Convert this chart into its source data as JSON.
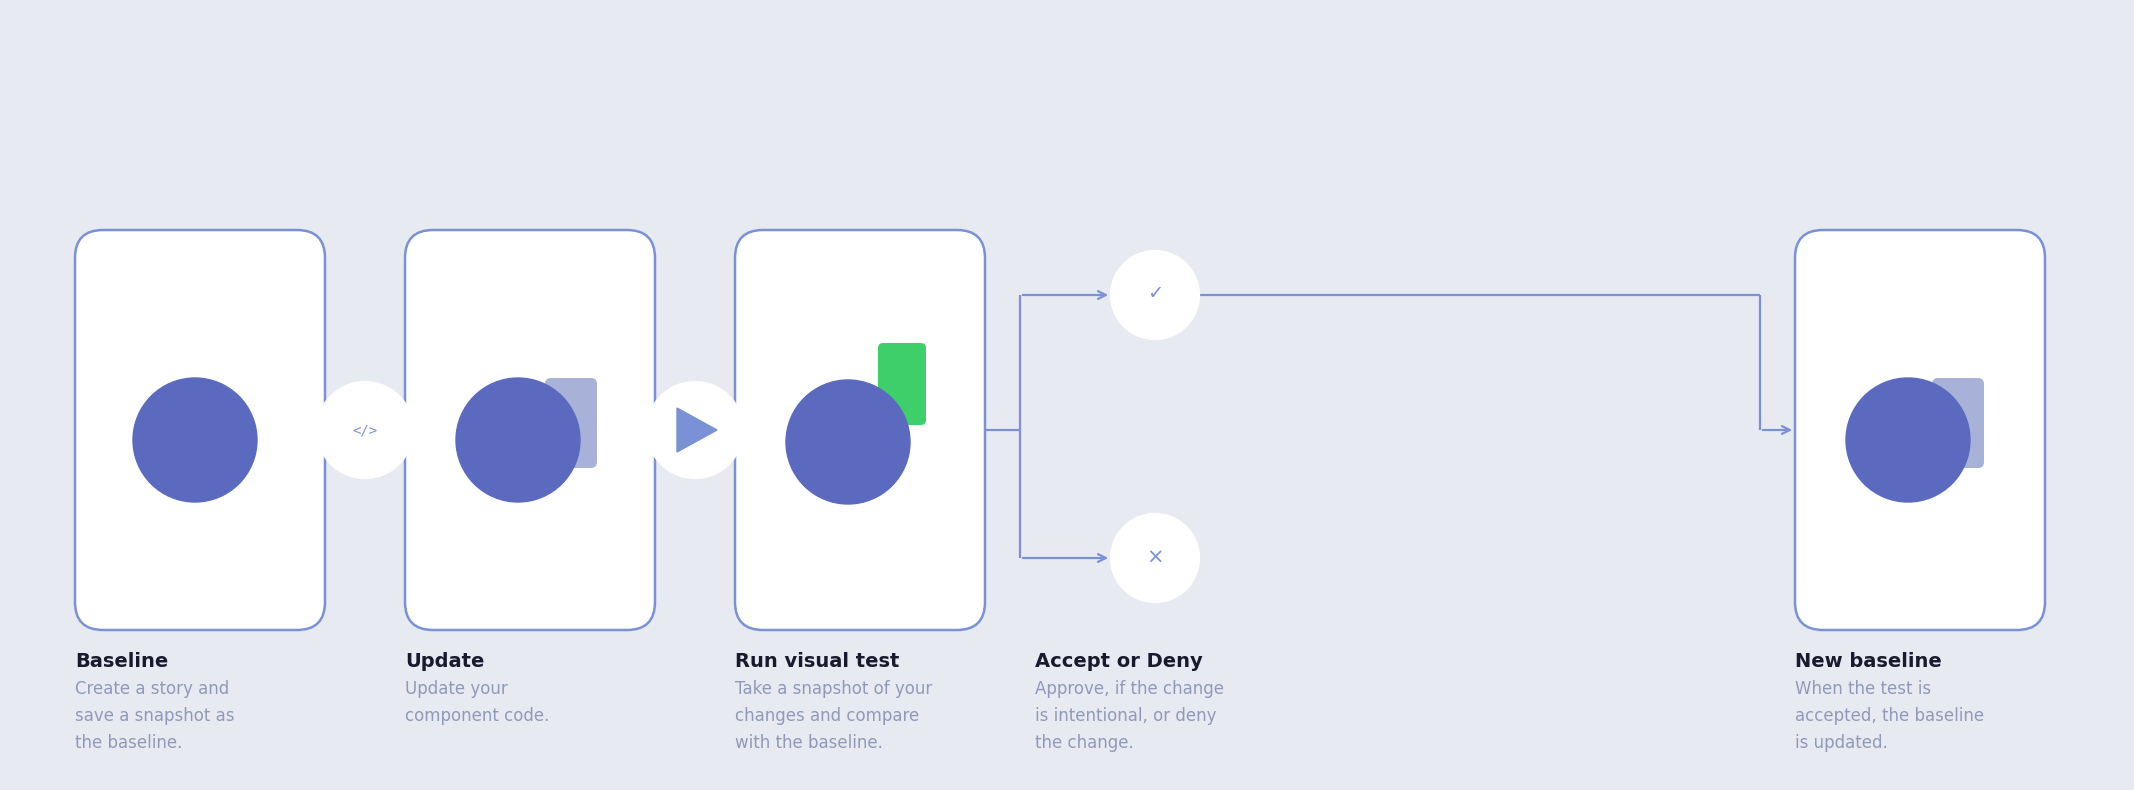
{
  "bg_color": "#e8eaf2",
  "card_bg": "#ffffff",
  "card_border": "#7b91d6",
  "circle_color": "#5b6abf",
  "square_color": "#9faad4",
  "square_color2": "#8892c8",
  "green_color": "#3ecf6a",
  "connector_color": "#7b91d6",
  "line_width": 1.6,
  "steps": [
    {
      "title": "Baseline",
      "desc": "Create a story and\nsave a snapshot as\nthe baseline."
    },
    {
      "title": "Update",
      "desc": "Update your\ncomponent code."
    },
    {
      "title": "Run visual test",
      "desc": "Take a snapshot of your\nchanges and compare\nwith the baseline."
    },
    {
      "title": "Accept or Deny",
      "desc": "Approve, if the change\nis intentional, or deny\nthe change."
    },
    {
      "title": "New baseline",
      "desc": "When the test is\naccepted, the baseline\nis updated."
    }
  ],
  "title_color": "#1a1a2e",
  "desc_color": "#9099b8",
  "title_fontsize": 14,
  "desc_fontsize": 12
}
